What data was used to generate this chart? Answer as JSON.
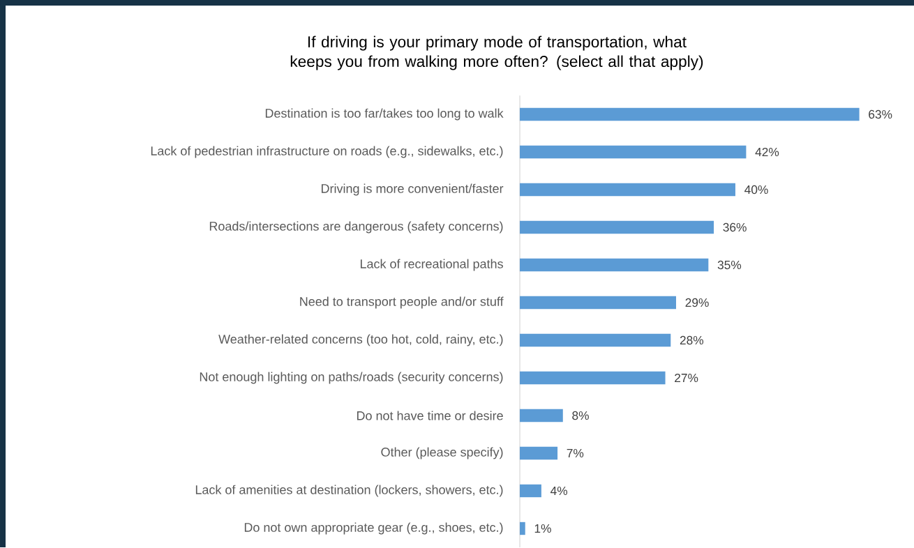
{
  "chart_data": {
    "type": "bar",
    "orientation": "horizontal",
    "title": "If driving is your primary mode of transportation, what keeps you from walking more often? (select all that apply)",
    "categories": [
      "Destination is too far/takes too long to walk",
      "Lack of pedestrian infrastructure on roads (e.g., sidewalks, etc.)",
      "Driving is more convenient/faster",
      "Roads/intersections are dangerous (safety concerns)",
      "Lack of recreational paths",
      "Need to transport people and/or stuff",
      "Weather-related concerns (too hot, cold, rainy, etc.)",
      "Not enough lighting on paths/roads (security concerns)",
      "Do not have time or desire",
      "Other (please specify)",
      "Lack of amenities at destination (lockers, showers, etc.)",
      "Do not own appropriate gear (e.g., shoes, etc.)"
    ],
    "values": [
      63,
      42,
      40,
      36,
      35,
      29,
      28,
      27,
      8,
      7,
      4,
      1
    ],
    "value_labels": [
      "63%",
      "42%",
      "40%",
      "36%",
      "35%",
      "29%",
      "28%",
      "27%",
      "8%",
      "7%",
      "4%",
      "1%"
    ],
    "color": "#5b9bd5"
  }
}
